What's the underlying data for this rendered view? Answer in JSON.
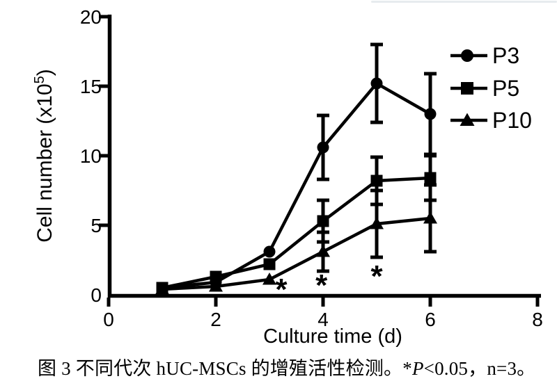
{
  "page": {
    "background": "#ffffff",
    "ink": "#000000"
  },
  "caption": {
    "part1": "图 3 不同代次 hUC-MSCs 的增殖活性检测。*",
    "p_italic": "P",
    "part2": "<0.05，n=3。"
  },
  "chart_data": {
    "type": "line",
    "title": "",
    "xlabel": "Culture time (d)",
    "ylabel": "Cell number (x10⁵)",
    "ylabel_parts": {
      "base": "Cell number (x10",
      "sup": "5",
      "end": ")"
    },
    "xlim": [
      0,
      8
    ],
    "ylim": [
      0,
      20
    ],
    "xticks": [
      0,
      2,
      4,
      6,
      8
    ],
    "yticks": [
      0,
      5,
      10,
      15,
      20
    ],
    "grid": false,
    "legend_position": "upper right",
    "x": [
      1,
      2,
      3,
      4,
      5,
      6
    ],
    "series": [
      {
        "name": "P3",
        "marker": "circle",
        "color": "#000000",
        "values": [
          0.5,
          0.9,
          3.1,
          10.6,
          15.2,
          13.0
        ],
        "errors": [
          0,
          0,
          0,
          2.3,
          2.8,
          2.9
        ]
      },
      {
        "name": "P5",
        "marker": "square",
        "color": "#000000",
        "values": [
          0.5,
          1.3,
          2.2,
          5.3,
          8.2,
          8.4
        ],
        "errors": [
          0,
          0,
          0,
          1.5,
          1.7,
          1.6
        ]
      },
      {
        "name": "P10",
        "marker": "triangle",
        "color": "#000000",
        "values": [
          0.4,
          0.6,
          1.1,
          3.1,
          5.1,
          5.5
        ],
        "errors": [
          0,
          0,
          0,
          1.4,
          2.4,
          2.4
        ]
      }
    ],
    "annotations": [
      {
        "text": "*",
        "x": 3.22,
        "y": 0.75
      },
      {
        "text": "*",
        "x": 3.97,
        "y": 1.05
      },
      {
        "text": "*",
        "x": 5.0,
        "y": 1.7
      }
    ]
  }
}
